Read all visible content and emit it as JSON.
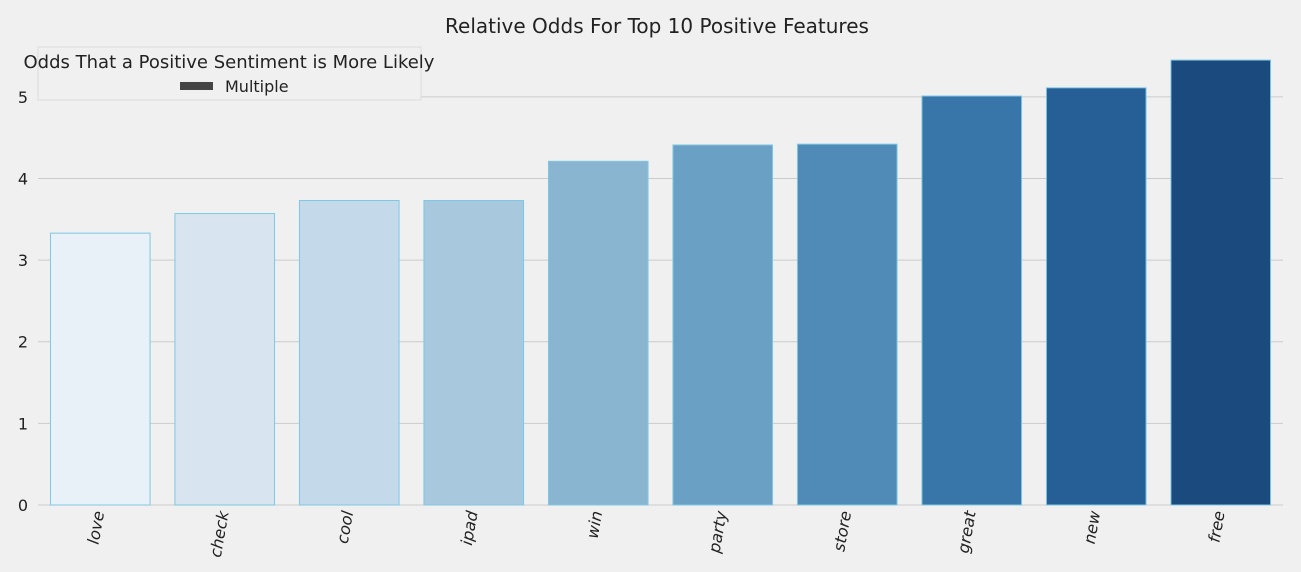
{
  "chart_data": {
    "type": "bar",
    "title": "Relative Odds For Top 10 Positive Features",
    "xlabel": "",
    "ylabel": "",
    "categories": [
      "love",
      "check",
      "cool",
      "ipad",
      "win",
      "party",
      "store",
      "great",
      "new",
      "free"
    ],
    "series": [
      {
        "name": "Multiple",
        "values": [
          3.33,
          3.57,
          3.73,
          3.73,
          4.21,
          4.41,
          4.42,
          5.01,
          5.11,
          5.45
        ]
      }
    ],
    "colors": [
      "#e8f0f8",
      "#d8e5f1",
      "#c4d9e9",
      "#a8c8dd",
      "#89b5d0",
      "#6aa0c4",
      "#4f8bb6",
      "#3875a8",
      "#255f96",
      "#1b4a7f"
    ],
    "edge_color": "#7ec8e3",
    "background": "#f0f0f0",
    "grid_color": "#cbcbcb",
    "ylim": [
      0,
      5.5
    ],
    "y_ticks": [
      "0",
      "1",
      "2",
      "3",
      "4",
      "5"
    ],
    "grid": "y",
    "legend": {
      "title": "Odds That a Positive Sentiment is More Likely",
      "placement": "top-left",
      "entries": [
        "Multiple"
      ],
      "swatch_color": "#444444"
    }
  }
}
